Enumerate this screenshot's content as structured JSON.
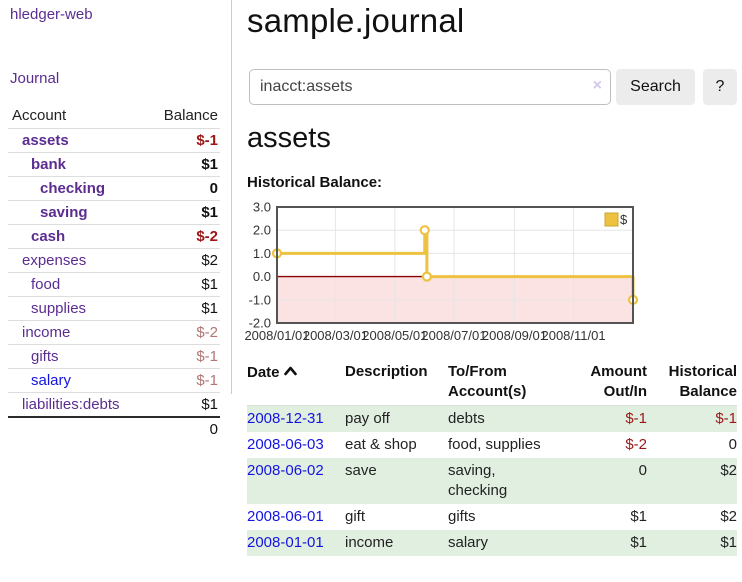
{
  "app": {
    "brand": "hledger-web",
    "nav_journal_label": "Journal"
  },
  "sidebar": {
    "header": {
      "account": "Account",
      "balance": "Balance"
    },
    "accounts": [
      {
        "name": "assets",
        "depth": 1,
        "bold": true,
        "balance": "$-1"
      },
      {
        "name": "bank",
        "depth": 2,
        "bold": true,
        "balance": "$1"
      },
      {
        "name": "checking",
        "depth": 3,
        "bold": true,
        "balance": "0"
      },
      {
        "name": "saving",
        "depth": 3,
        "bold": true,
        "balance": "$1"
      },
      {
        "name": "cash",
        "depth": 2,
        "bold": true,
        "balance": "$-2"
      },
      {
        "name": "expenses",
        "depth": 1,
        "bold": false,
        "balance": "$2"
      },
      {
        "name": "food",
        "depth": 2,
        "bold": false,
        "balance": "$1"
      },
      {
        "name": "supplies",
        "depth": 2,
        "bold": false,
        "balance": "$1"
      },
      {
        "name": "income",
        "depth": 1,
        "bold": false,
        "balance": "$-2"
      },
      {
        "name": "gifts",
        "depth": 2,
        "bold": false,
        "balance": "$-1"
      },
      {
        "name": "salary",
        "depth": 2,
        "bold": false,
        "link_color": "blue",
        "balance": "$-1"
      },
      {
        "name": "liabilities:debts",
        "depth": 1,
        "bold": false,
        "balance": "$1"
      }
    ],
    "total": "0"
  },
  "header": {
    "title": "sample.journal"
  },
  "search": {
    "value": "inacct:assets",
    "clear_icon": "×",
    "search_button": "Search",
    "help_button": "?"
  },
  "account_page": {
    "title": "assets",
    "chart_label": "Historical Balance:"
  },
  "chart_data": {
    "type": "line",
    "title": "Historical Balance:",
    "series": [
      {
        "name": "$",
        "color": "#edc240",
        "step": true,
        "points": [
          {
            "date": "2008/01/01",
            "x": 0.0,
            "y": 1
          },
          {
            "date": "2008/06/01",
            "x": 0.415,
            "y": 2
          },
          {
            "date": "2008/06/03",
            "x": 0.421,
            "y": 0
          },
          {
            "date": "2008/12/31",
            "x": 1.0,
            "y": -1
          }
        ]
      }
    ],
    "x_ticks": [
      {
        "label": "2008/01/01",
        "x": 0.0
      },
      {
        "label": "2008/03/01",
        "x": 0.164
      },
      {
        "label": "2008/05/01",
        "x": 0.331
      },
      {
        "label": "2008/07/01",
        "x": 0.497
      },
      {
        "label": "2008/09/01",
        "x": 0.667
      },
      {
        "label": "2008/11/01",
        "x": 0.833
      }
    ],
    "y_ticks": [
      {
        "label": "3.0",
        "v": 3
      },
      {
        "label": "2.0",
        "v": 2
      },
      {
        "label": "1.0",
        "v": 1
      },
      {
        "label": "0.0",
        "v": 0
      },
      {
        "label": "-1.0",
        "v": -1
      },
      {
        "label": "-2.0",
        "v": -2
      }
    ],
    "ylim": [
      -2,
      3
    ],
    "legend_position": "top-right",
    "grid": true,
    "colors": {
      "negative_region": "#fbe3e3",
      "zero_line": "#8b0000",
      "grid": "#e6e6e6",
      "border": "#545454",
      "legend_swatch_border": "#c9a52f"
    }
  },
  "register": {
    "columns": [
      "Date",
      "Description",
      "To/From Account(s)",
      "Amount Out/In",
      "Historical Balance"
    ],
    "rows": [
      {
        "date": "2008-12-31",
        "description": "pay off",
        "accounts": "debts",
        "amount": "$-1",
        "balance": "$-1"
      },
      {
        "date": "2008-06-03",
        "description": "eat & shop",
        "accounts": "food, supplies",
        "amount": "$-2",
        "balance": "0"
      },
      {
        "date": "2008-06-02",
        "description": "save",
        "accounts": "saving, checking",
        "amount": "0",
        "balance": "$2"
      },
      {
        "date": "2008-06-01",
        "description": "gift",
        "accounts": "gifts",
        "amount": "$1",
        "balance": "$2"
      },
      {
        "date": "2008-01-01",
        "description": "income",
        "accounts": "salary",
        "amount": "$1",
        "balance": "$1"
      }
    ]
  }
}
